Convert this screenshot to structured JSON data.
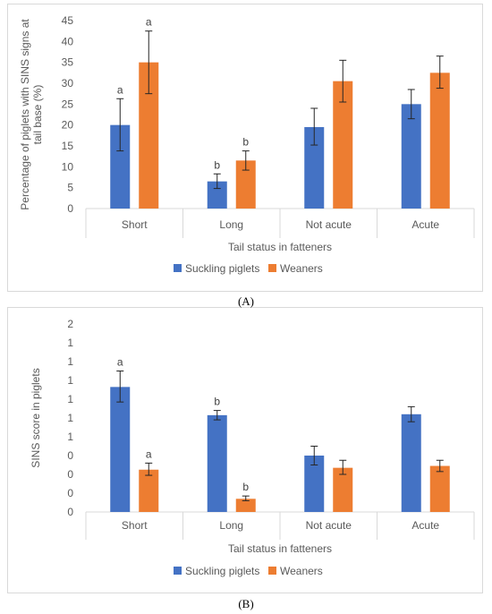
{
  "panels": {
    "a_label": "(A)",
    "b_label": "(B)"
  },
  "colors": {
    "suckling": "#4472c4",
    "weaners": "#ed7d31",
    "axis_text": "#595959",
    "grid": "#d9d9d9"
  },
  "chart_data": [
    {
      "type": "bar",
      "panel": "A",
      "categories": [
        "Short",
        "Long",
        "Not acute",
        "Acute"
      ],
      "xlabel": "Tail status in fatteners",
      "ylabel_lines": [
        "Percentage of piglets with SINS signs at",
        "tail base (%)"
      ],
      "ylim": [
        0,
        45
      ],
      "yticks": [
        0,
        5,
        10,
        15,
        20,
        25,
        30,
        35,
        40,
        45
      ],
      "ytick_labels": [
        "0",
        "5",
        "10",
        "15",
        "20",
        "25",
        "30",
        "35",
        "40",
        "45"
      ],
      "grid": false,
      "legend": "bottom",
      "series": [
        {
          "name": "Suckling piglets",
          "values": [
            20,
            6.5,
            19.5,
            25
          ],
          "err_low": [
            13.8,
            4.8,
            15.2,
            21.5
          ],
          "err_high": [
            26.3,
            8.3,
            24,
            28.5
          ],
          "sig": [
            "a",
            "b",
            "",
            ""
          ]
        },
        {
          "name": "Weaners",
          "values": [
            35,
            11.5,
            30.5,
            32.5
          ],
          "err_low": [
            27.5,
            9.2,
            25.5,
            28.8
          ],
          "err_high": [
            42.5,
            13.8,
            35.5,
            36.5
          ],
          "sig": [
            "a",
            "b",
            "",
            ""
          ]
        }
      ]
    },
    {
      "type": "bar",
      "panel": "B",
      "categories": [
        "Short",
        "Long",
        "Not acute",
        "Acute"
      ],
      "xlabel": "Tail status in fatteners",
      "ylabel_lines": [
        "SINS score in  piglets"
      ],
      "ylim": [
        0,
        2
      ],
      "yticks": [
        0,
        0.2,
        0.4,
        0.6,
        0.8,
        1.0,
        1.2,
        1.4,
        1.6,
        1.8,
        2.0
      ],
      "ytick_labels": [
        "0",
        "0",
        "0",
        "0",
        "1",
        "1",
        "1",
        "1",
        "1",
        "1",
        "2"
      ],
      "grid": false,
      "legend": "bottom",
      "series": [
        {
          "name": "Suckling piglets",
          "values": [
            1.33,
            1.03,
            0.6,
            1.04
          ],
          "err_low": [
            1.17,
            0.98,
            0.5,
            0.96
          ],
          "err_high": [
            1.5,
            1.08,
            0.7,
            1.12
          ],
          "sig": [
            "a",
            "b",
            "",
            ""
          ]
        },
        {
          "name": "Weaners",
          "values": [
            0.45,
            0.14,
            0.47,
            0.49
          ],
          "err_low": [
            0.39,
            0.12,
            0.4,
            0.43
          ],
          "err_high": [
            0.52,
            0.17,
            0.55,
            0.55
          ],
          "sig": [
            "a",
            "b",
            "",
            ""
          ]
        }
      ]
    }
  ]
}
